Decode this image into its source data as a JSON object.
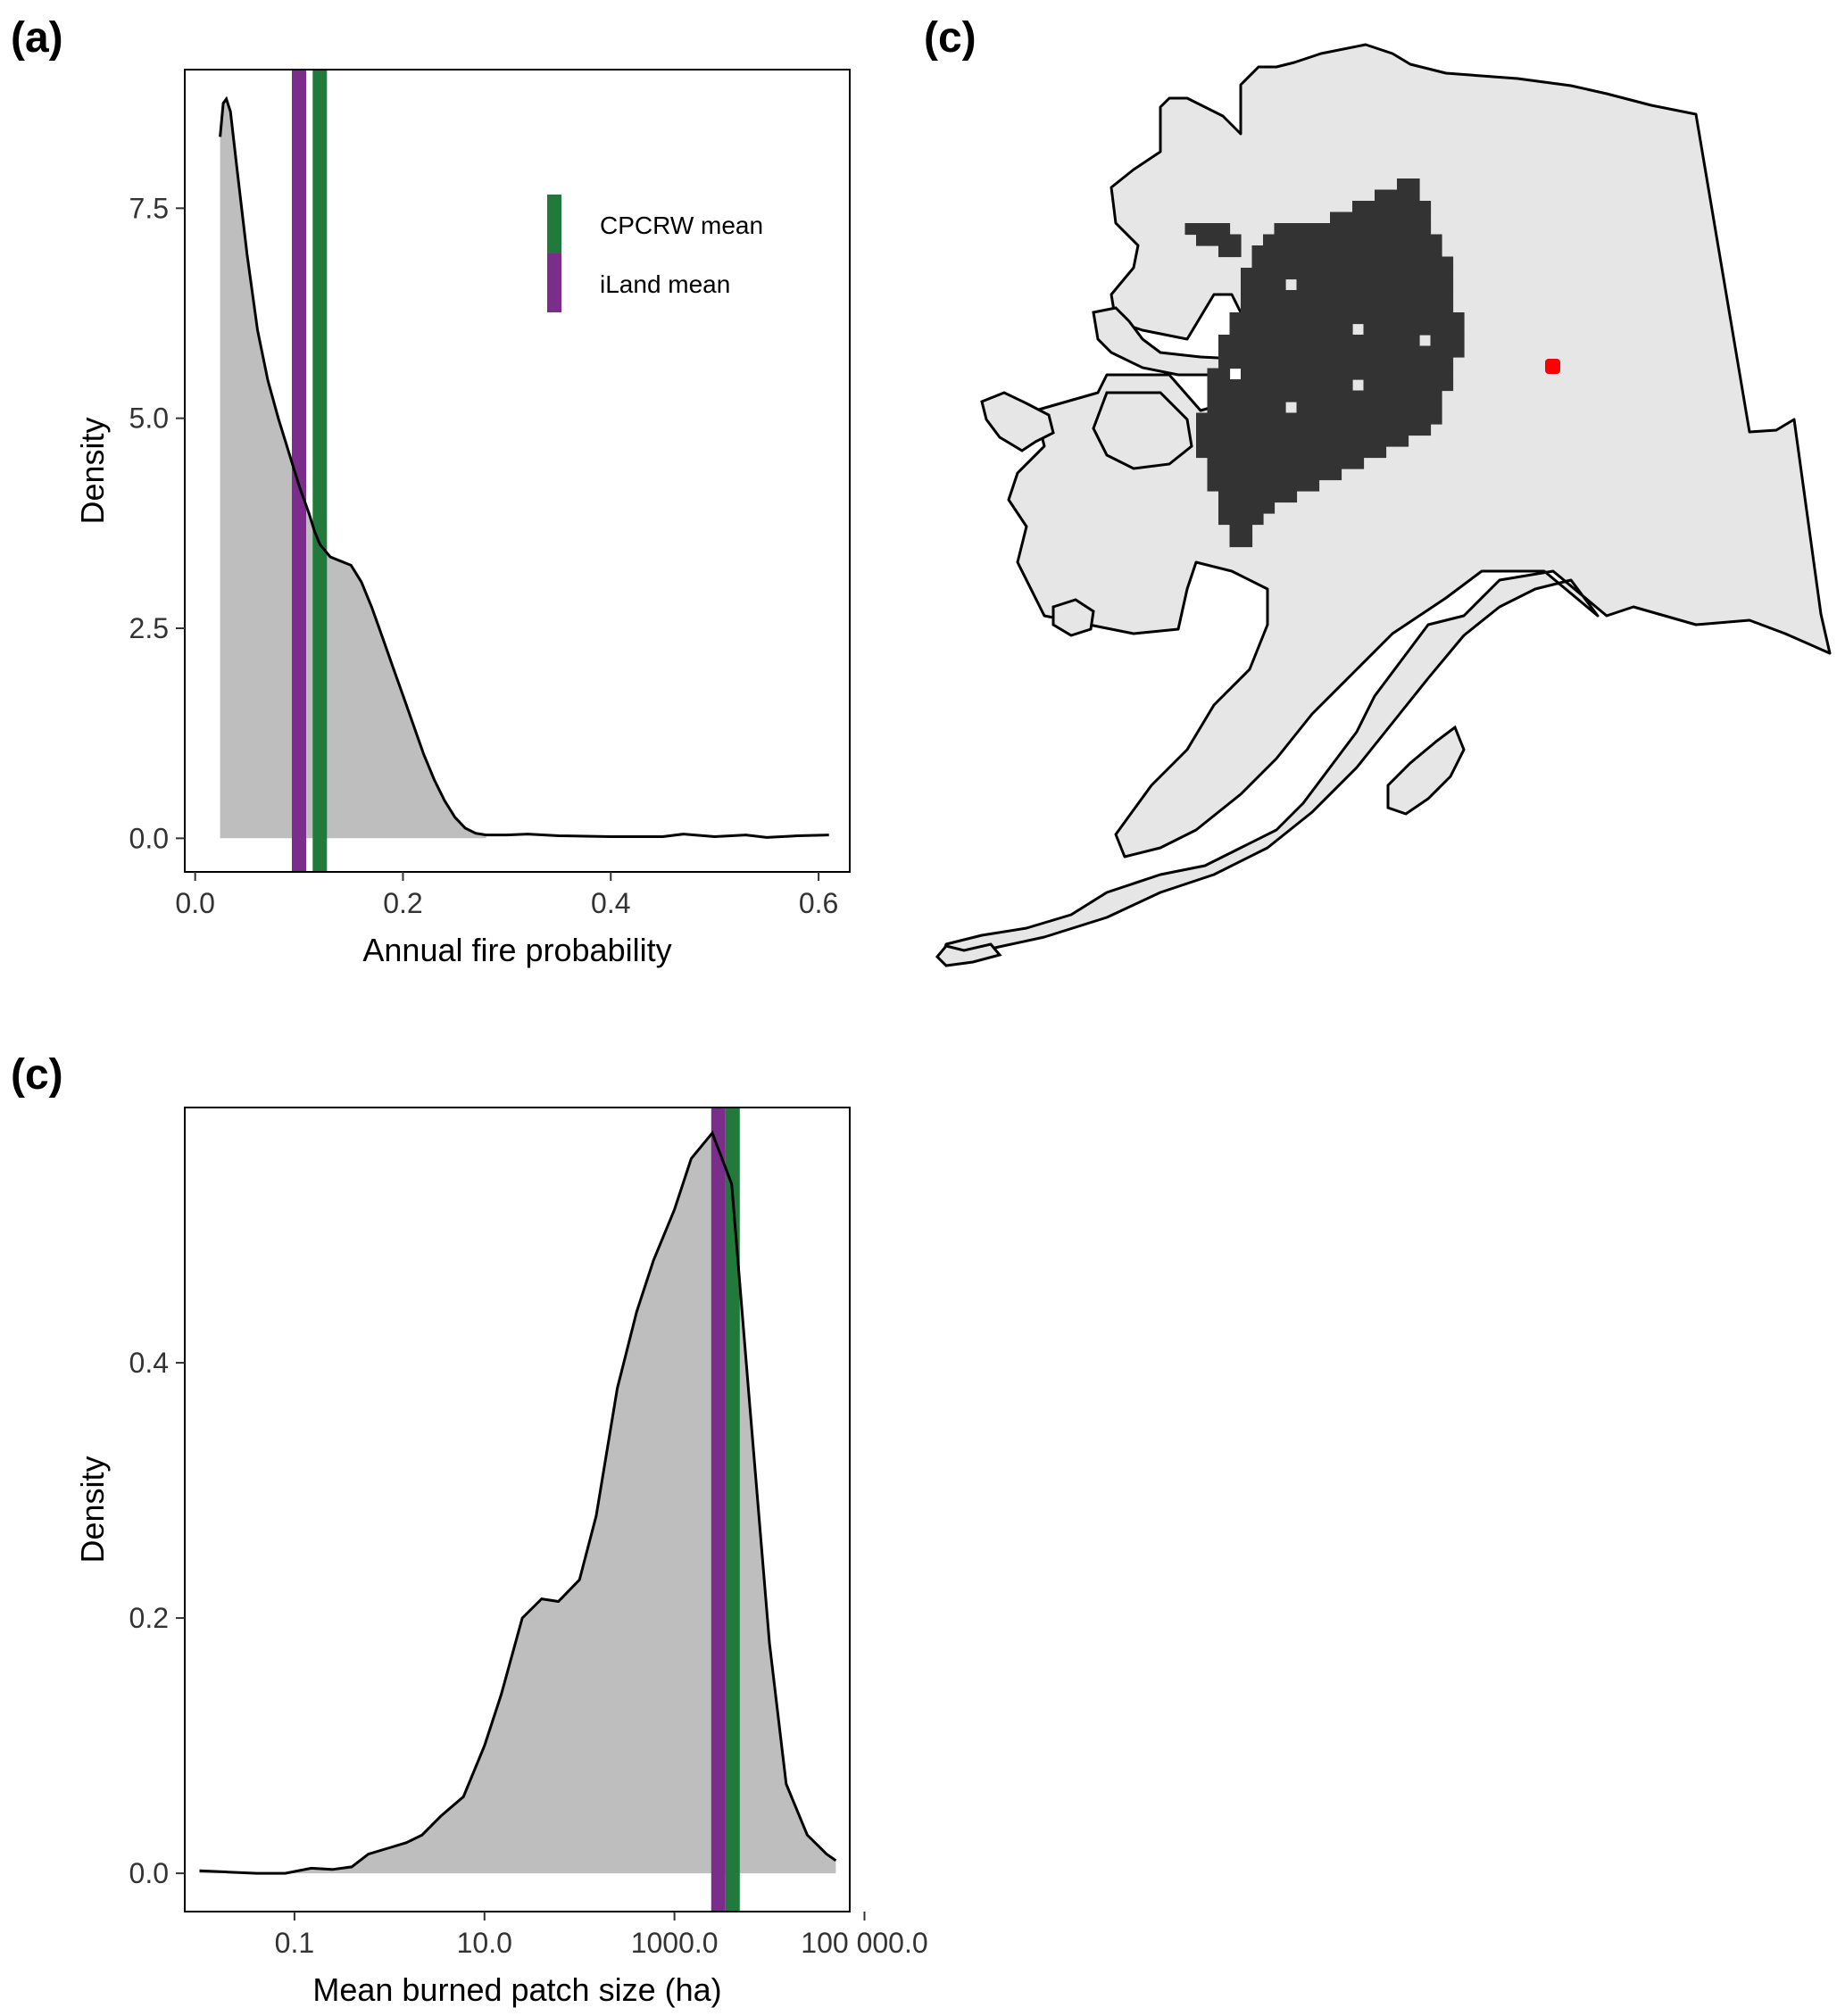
{
  "panels": {
    "a_label": "(a)",
    "b_label": "(c)",
    "map_label": "(c)"
  },
  "colors": {
    "cpcrw": "#217a3c",
    "iland": "#7b2d8b",
    "density_fill": "#bebebe",
    "burned_cells": "#333333",
    "land": "#e6e6e6",
    "site": "#ff0000"
  },
  "legend": {
    "items": [
      {
        "label": "CPCRW mean",
        "color": "#217a3c"
      },
      {
        "label": "iLand mean",
        "color": "#7b2d8b"
      }
    ]
  },
  "chart_data": [
    {
      "type": "area",
      "xlabel": "Annual fire probability",
      "ylabel": "Density",
      "xlim": [
        -0.01,
        0.63
      ],
      "ylim": [
        -0.4,
        9.15
      ],
      "xticks": [
        0.0,
        0.2,
        0.4,
        0.6
      ],
      "xtick_labels": [
        "0.0",
        "0.2",
        "0.4",
        "0.6"
      ],
      "yticks": [
        0.0,
        2.5,
        5.0,
        7.5
      ],
      "ytick_labels": [
        "0.0",
        "2.5",
        "5.0",
        "7.5"
      ],
      "fill_end": 0.28,
      "density": {
        "x": [
          0.024,
          0.027,
          0.03,
          0.034,
          0.04,
          0.05,
          0.06,
          0.07,
          0.08,
          0.09,
          0.1,
          0.11,
          0.115,
          0.12,
          0.13,
          0.14,
          0.15,
          0.16,
          0.17,
          0.18,
          0.19,
          0.2,
          0.21,
          0.22,
          0.23,
          0.24,
          0.25,
          0.26,
          0.27,
          0.28,
          0.3,
          0.32,
          0.35,
          0.4,
          0.45,
          0.47,
          0.5,
          0.53,
          0.55,
          0.58,
          0.61
        ],
        "y": [
          8.35,
          8.75,
          8.8,
          8.65,
          8.0,
          6.95,
          6.05,
          5.45,
          5.0,
          4.6,
          4.2,
          3.85,
          3.65,
          3.5,
          3.35,
          3.3,
          3.25,
          3.05,
          2.75,
          2.4,
          2.05,
          1.7,
          1.35,
          1.0,
          0.7,
          0.45,
          0.25,
          0.12,
          0.06,
          0.04,
          0.04,
          0.05,
          0.03,
          0.02,
          0.02,
          0.05,
          0.02,
          0.04,
          0.01,
          0.03,
          0.04
        ]
      },
      "vlines": [
        {
          "name": "iLand mean",
          "x": 0.1
        },
        {
          "name": "CPCRW mean",
          "x": 0.12
        }
      ]
    },
    {
      "type": "area",
      "xlabel": "Mean burned patch size (ha)",
      "ylabel": "Density",
      "x_scale": "log10",
      "xlim": [
        0.007,
        70000
      ],
      "ylim": [
        -0.03,
        0.6
      ],
      "xticks": [
        0.1,
        10,
        1000,
        100000
      ],
      "xtick_labels": [
        "0.1",
        "10.0",
        "1000.0",
        "100 000.0"
      ],
      "yticks": [
        0.0,
        0.2,
        0.4
      ],
      "ytick_labels": [
        "0.0",
        "0.2",
        "0.4"
      ],
      "fill_start": 0.01,
      "density": {
        "x": [
          0.01,
          0.02,
          0.04,
          0.08,
          0.15,
          0.25,
          0.4,
          0.6,
          1.0,
          1.5,
          2.2,
          3.5,
          6,
          10,
          15,
          25,
          40,
          60,
          100,
          150,
          250,
          400,
          600,
          1000,
          1500,
          2500,
          4000,
          6000,
          10000,
          15000,
          25000,
          40000,
          50000
        ],
        "y": [
          0.002,
          0.001,
          0.0,
          0.0,
          0.004,
          0.003,
          0.005,
          0.015,
          0.02,
          0.024,
          0.03,
          0.045,
          0.06,
          0.1,
          0.14,
          0.2,
          0.215,
          0.213,
          0.23,
          0.28,
          0.38,
          0.44,
          0.48,
          0.52,
          0.56,
          0.58,
          0.54,
          0.38,
          0.18,
          0.07,
          0.03,
          0.015,
          0.01
        ]
      },
      "vlines": [
        {
          "name": "iLand mean",
          "x": 2900
        },
        {
          "name": "CPCRW mean",
          "x": 4100
        }
      ]
    }
  ]
}
